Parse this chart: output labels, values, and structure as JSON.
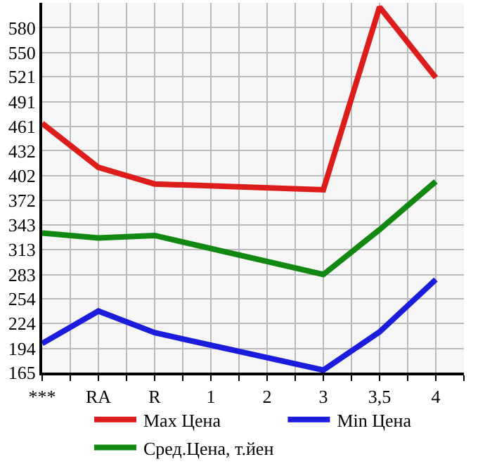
{
  "chart_data": {
    "type": "line",
    "categories": [
      "***",
      "RA",
      "R",
      "1",
      "2",
      "3",
      "3,5",
      "4"
    ],
    "series": [
      {
        "name": "Max Цена",
        "color": "#dd1c1c",
        "values": [
          465,
          412,
          392,
          null,
          null,
          385,
          605,
          520
        ]
      },
      {
        "name": "Min Цена",
        "color": "#1c1cdd",
        "values": [
          200,
          239,
          213,
          null,
          null,
          168,
          214,
          277
        ]
      },
      {
        "name": "Сред.Цена, т.йен",
        "color": "#118811",
        "values": [
          333,
          327,
          330,
          null,
          null,
          283,
          337,
          395
        ]
      }
    ],
    "ylim": [
      165,
      610
    ],
    "yticks": [
      165,
      194,
      224,
      254,
      283,
      313,
      343,
      372,
      402,
      432,
      461,
      491,
      521,
      550,
      580
    ],
    "grid": true,
    "legend": "bottom",
    "marker": "none",
    "line_style": "solid"
  }
}
